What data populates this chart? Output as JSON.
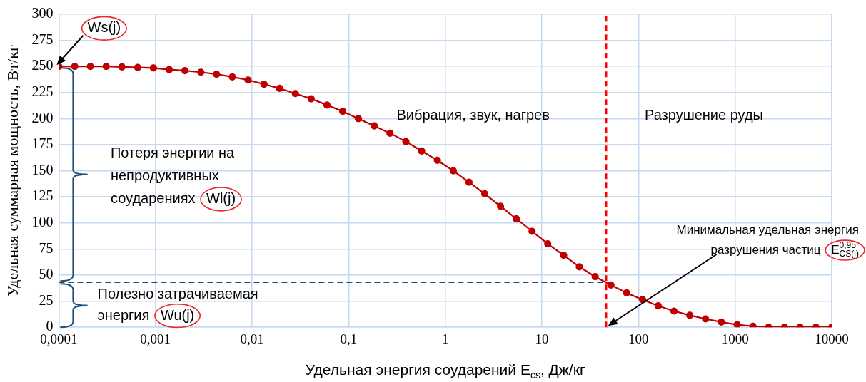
{
  "chart_data": {
    "type": "line",
    "xlabel": "Удельная энергия соударений E$_{cs}$, Дж/кг",
    "ylabel": "Удельная суммарная мощность, Вт/кг",
    "log": "x",
    "xlim": [
      0.0001,
      10000
    ],
    "xticks": [
      {
        "value": 0.0001,
        "label": "0,0001"
      },
      {
        "value": 0.001,
        "label": "0,001"
      },
      {
        "value": 0.01,
        "label": "0,01"
      },
      {
        "value": 0.1,
        "label": "0,1"
      },
      1,
      10,
      100,
      1000,
      10000
    ],
    "ylim": [
      0,
      300
    ],
    "yticks": [
      0,
      25,
      50,
      75,
      100,
      125,
      150,
      175,
      200,
      225,
      250,
      275,
      300
    ],
    "grid": true,
    "marker": "circle",
    "line_style": "solid",
    "series": [
      {
        "color": "#c00000",
        "x": [
          0.0001,
          0.000146,
          0.000212,
          0.000309,
          0.00045,
          0.000655,
          0.000954,
          0.00139,
          0.00202,
          0.00295,
          0.00429,
          0.00625,
          0.0091,
          0.0133,
          0.0193,
          0.0281,
          0.0409,
          0.0596,
          0.0868,
          0.126,
          0.184,
          0.268,
          0.391,
          0.569,
          0.829,
          1.21,
          1.76,
          2.56,
          3.73,
          5.43,
          7.91,
          11.5,
          16.8,
          24.4,
          35.6,
          51.8,
          75.4,
          110,
          160,
          233,
          339,
          494,
          720,
          1050,
          1530,
          2220,
          3240,
          4710,
          6870,
          10000
        ],
        "values": [
          250,
          250,
          250,
          250,
          249.5,
          249,
          248.5,
          247,
          246,
          244.5,
          242.5,
          240,
          237,
          233,
          229,
          224,
          219,
          213,
          207,
          200,
          193,
          186,
          178,
          169,
          160,
          150,
          139,
          128,
          116,
          104,
          92,
          80,
          69,
          58,
          48.5,
          40.5,
          33,
          26.5,
          20.5,
          15.5,
          11.5,
          8,
          5,
          2.5,
          1,
          0,
          0,
          0,
          0,
          0
        ]
      }
    ],
    "ref_lines": [
      {
        "axis": "x",
        "value": 46,
        "color": "#ff0000",
        "line_style": "dashed"
      },
      {
        "axis": "y",
        "value": 43,
        "color": "#1f4e79",
        "line_style": "dashed"
      }
    ],
    "annotations": [
      {
        "text": "Ws(j)",
        "x": 0.0001,
        "y": 250
      },
      "Потеря энергии на непродуктивных соударениях Wl(j)",
      "Полезно затрачиваемая энергия Wu(j)",
      "Вибрация, звук, нагрев",
      "Разрушение руды",
      "Минимальная удельная энергия разрушения частиц E$^{0,95}$$_{CS(j)}$"
    ]
  }
}
